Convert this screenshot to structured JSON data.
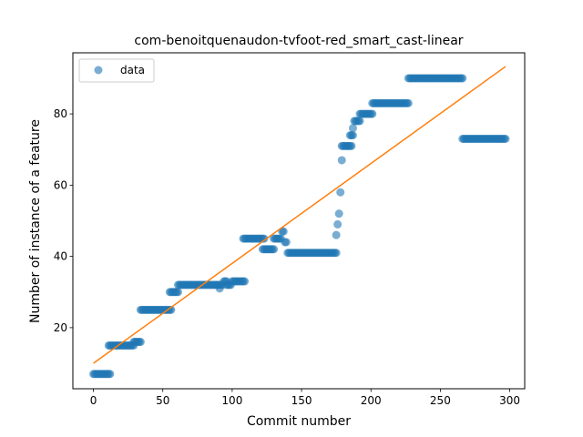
{
  "chart_data": {
    "type": "scatter",
    "title": "com-benoitquenaudon-tvfoot-red_smart_cast-linear",
    "xlabel": "Commit number",
    "ylabel": "Number of instance of a feature",
    "xlim": [
      -14.8,
      310.8
    ],
    "ylim": [
      2.85,
      97.15
    ],
    "xticks": [
      0,
      50,
      100,
      150,
      200,
      250,
      300
    ],
    "yticks": [
      20,
      40,
      60,
      80
    ],
    "grid": false,
    "legend": {
      "position": "top-left",
      "entries": [
        "data"
      ]
    },
    "colors": {
      "data": "#1f77b4",
      "fit": "#ff7f0e"
    },
    "segments": [
      {
        "x_start": 0,
        "x_end": 12,
        "y": 7
      },
      {
        "x_start": 11,
        "x_end": 29,
        "y": 15
      },
      {
        "x_start": 29,
        "x_end": 34,
        "y": 16
      },
      {
        "x_start": 34,
        "x_end": 56,
        "y": 25
      },
      {
        "x_start": 55,
        "x_end": 61,
        "y": 30
      },
      {
        "x_start": 61,
        "x_end": 91,
        "y": 32
      },
      {
        "x_start": 91,
        "x_end": 91,
        "y": 31
      },
      {
        "x_start": 92,
        "x_end": 93,
        "y": 32
      },
      {
        "x_start": 94,
        "x_end": 96,
        "y": 33
      },
      {
        "x_start": 96,
        "x_end": 99,
        "y": 32
      },
      {
        "x_start": 100,
        "x_end": 109,
        "y": 33
      },
      {
        "x_start": 108,
        "x_end": 123,
        "y": 45
      },
      {
        "x_start": 122,
        "x_end": 130,
        "y": 42
      },
      {
        "x_start": 130,
        "x_end": 135,
        "y": 45
      },
      {
        "x_start": 136,
        "x_end": 137,
        "y": 47
      },
      {
        "x_start": 138,
        "x_end": 139,
        "y": 44
      },
      {
        "x_start": 140,
        "x_end": 175,
        "y": 41
      },
      {
        "x_start": 175,
        "x_end": 175,
        "y": 46
      },
      {
        "x_start": 176,
        "x_end": 176,
        "y": 49
      },
      {
        "x_start": 177,
        "x_end": 177,
        "y": 52
      },
      {
        "x_start": 178,
        "x_end": 178,
        "y": 58
      },
      {
        "x_start": 179,
        "x_end": 179,
        "y": 67
      },
      {
        "x_start": 179,
        "x_end": 186,
        "y": 71
      },
      {
        "x_start": 185,
        "x_end": 187,
        "y": 74
      },
      {
        "x_start": 187,
        "x_end": 187,
        "y": 76
      },
      {
        "x_start": 188,
        "x_end": 192,
        "y": 78
      },
      {
        "x_start": 192,
        "x_end": 201,
        "y": 80
      },
      {
        "x_start": 201,
        "x_end": 227,
        "y": 83
      },
      {
        "x_start": 227,
        "x_end": 266,
        "y": 90
      },
      {
        "x_start": 266,
        "x_end": 297,
        "y": 73
      }
    ],
    "fit_line": {
      "x": [
        0,
        297
      ],
      "y": [
        10,
        93.3
      ]
    }
  }
}
